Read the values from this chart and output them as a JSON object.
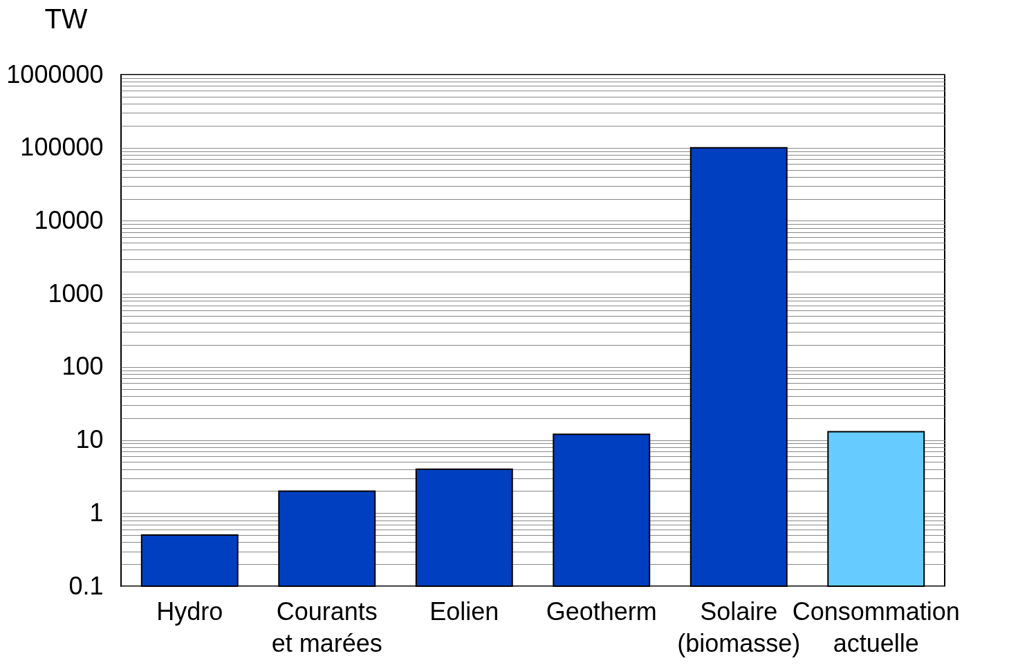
{
  "chart_data": {
    "type": "bar",
    "ylabel": "TW",
    "categories": [
      "Hydro",
      "Courants et marées",
      "Eolien",
      "Geotherm",
      "Solaire (biomasse)",
      "Consommation actuelle"
    ],
    "values": [
      0.5,
      2,
      4,
      12,
      100000,
      13
    ],
    "colors": [
      "#0040c0",
      "#0040c0",
      "#0040c0",
      "#0040c0",
      "#0040c0",
      "#66ccff"
    ],
    "log": true,
    "grid": "y",
    "ylim": [
      0.1,
      1000000
    ],
    "yticks": [
      0.1,
      {
        "value": 0.2,
        "label": null
      },
      {
        "value": 0.3,
        "label": null
      },
      {
        "value": 0.4,
        "label": null
      },
      {
        "value": 0.5,
        "label": null
      },
      {
        "value": 0.6,
        "label": null
      },
      {
        "value": 0.7,
        "label": null
      },
      {
        "value": 0.8,
        "label": null
      },
      {
        "value": 0.9,
        "label": null
      },
      1,
      {
        "value": 2,
        "label": null
      },
      {
        "value": 3,
        "label": null
      },
      {
        "value": 4,
        "label": null
      },
      {
        "value": 5,
        "label": null
      },
      {
        "value": 6,
        "label": null
      },
      {
        "value": 7,
        "label": null
      },
      {
        "value": 8,
        "label": null
      },
      {
        "value": 9,
        "label": null
      },
      10,
      {
        "value": 20,
        "label": null
      },
      {
        "value": 30,
        "label": null
      },
      {
        "value": 40,
        "label": null
      },
      {
        "value": 50,
        "label": null
      },
      {
        "value": 60,
        "label": null
      },
      {
        "value": 70,
        "label": null
      },
      {
        "value": 80,
        "label": null
      },
      {
        "value": 90,
        "label": null
      },
      100,
      {
        "value": 200,
        "label": null
      },
      {
        "value": 300,
        "label": null
      },
      {
        "value": 400,
        "label": null
      },
      {
        "value": 500,
        "label": null
      },
      {
        "value": 600,
        "label": null
      },
      {
        "value": 700,
        "label": null
      },
      {
        "value": 800,
        "label": null
      },
      {
        "value": 900,
        "label": null
      },
      1000,
      {
        "value": 2000,
        "label": null
      },
      {
        "value": 3000,
        "label": null
      },
      {
        "value": 4000,
        "label": null
      },
      {
        "value": 5000,
        "label": null
      },
      {
        "value": 6000,
        "label": null
      },
      {
        "value": 7000,
        "label": null
      },
      {
        "value": 8000,
        "label": null
      },
      {
        "value": 9000,
        "label": null
      },
      10000,
      {
        "value": 20000,
        "label": null
      },
      {
        "value": 30000,
        "label": null
      },
      {
        "value": 40000,
        "label": null
      },
      {
        "value": 50000,
        "label": null
      },
      {
        "value": 60000,
        "label": null
      },
      {
        "value": 70000,
        "label": null
      },
      {
        "value": 80000,
        "label": null
      },
      {
        "value": 90000,
        "label": null
      },
      100000,
      {
        "value": 200000,
        "label": null
      },
      {
        "value": 300000,
        "label": null
      },
      {
        "value": 400000,
        "label": null
      },
      {
        "value": 500000,
        "label": null
      },
      {
        "value": 600000,
        "label": null
      },
      {
        "value": 700000,
        "label": null
      },
      {
        "value": 800000,
        "label": null
      },
      {
        "value": 900000,
        "label": null
      },
      1000000
    ]
  }
}
